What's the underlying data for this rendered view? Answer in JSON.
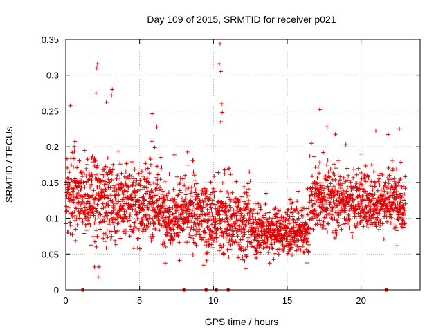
{
  "chart_data": {
    "type": "scatter",
    "title": "Day 109 of 2015, SRMTID for receiver p021",
    "xlabel": "GPS time / hours",
    "ylabel": "SRMTID / TECUs",
    "xlim": [
      0,
      24
    ],
    "ylim": [
      0,
      0.35
    ],
    "x_ticks": [
      0,
      5,
      10,
      15,
      20
    ],
    "x_tick_labels": [
      "0",
      "5",
      "10",
      "15",
      "20"
    ],
    "y_ticks": [
      0,
      0.05,
      0.1,
      0.15,
      0.2,
      0.25,
      0.3,
      0.35
    ],
    "y_tick_labels": [
      "0",
      "0.05",
      "0.1",
      "0.15",
      "0.2",
      "0.25",
      "0.3",
      "0.35"
    ],
    "grid": true,
    "marker": "+",
    "color": "#e00000",
    "x_range_covered": [
      0,
      23
    ],
    "segments": [
      {
        "x0": 0.0,
        "x1": 3.0,
        "mean": 0.125,
        "spread": 0.04
      },
      {
        "x0": 3.0,
        "x1": 6.5,
        "mean": 0.12,
        "spread": 0.035
      },
      {
        "x0": 6.5,
        "x1": 9.5,
        "mean": 0.105,
        "spread": 0.032
      },
      {
        "x0": 9.5,
        "x1": 12.5,
        "mean": 0.095,
        "spread": 0.035
      },
      {
        "x0": 12.5,
        "x1": 16.5,
        "mean": 0.08,
        "spread": 0.022
      },
      {
        "x0": 16.5,
        "x1": 23.0,
        "mean": 0.125,
        "spread": 0.03
      }
    ],
    "notable_points": [
      {
        "x": 2.15,
        "y": 0.316
      },
      {
        "x": 2.1,
        "y": 0.31
      },
      {
        "x": 2.05,
        "y": 0.275
      },
      {
        "x": 3.15,
        "y": 0.28
      },
      {
        "x": 3.1,
        "y": 0.272
      },
      {
        "x": 2.75,
        "y": 0.262
      },
      {
        "x": 5.85,
        "y": 0.246
      },
      {
        "x": 10.45,
        "y": 0.344
      },
      {
        "x": 10.4,
        "y": 0.316
      },
      {
        "x": 10.5,
        "y": 0.305
      },
      {
        "x": 10.55,
        "y": 0.26
      },
      {
        "x": 10.6,
        "y": 0.248
      },
      {
        "x": 10.5,
        "y": 0.235
      },
      {
        "x": 17.2,
        "y": 0.252
      },
      {
        "x": 17.7,
        "y": 0.228
      },
      {
        "x": 21.0,
        "y": 0.222
      },
      {
        "x": 22.6,
        "y": 0.225
      },
      {
        "x": 2.2,
        "y": 0.018
      },
      {
        "x": 2.25,
        "y": 0.032
      },
      {
        "x": 1.95,
        "y": 0.032
      }
    ],
    "zero_points": [
      {
        "x": 1.15,
        "y": 0
      },
      {
        "x": 8.0,
        "y": 0
      },
      {
        "x": 9.5,
        "y": 0
      },
      {
        "x": 10.2,
        "y": 0
      },
      {
        "x": 11.0,
        "y": 0
      },
      {
        "x": 21.7,
        "y": 0
      }
    ]
  }
}
